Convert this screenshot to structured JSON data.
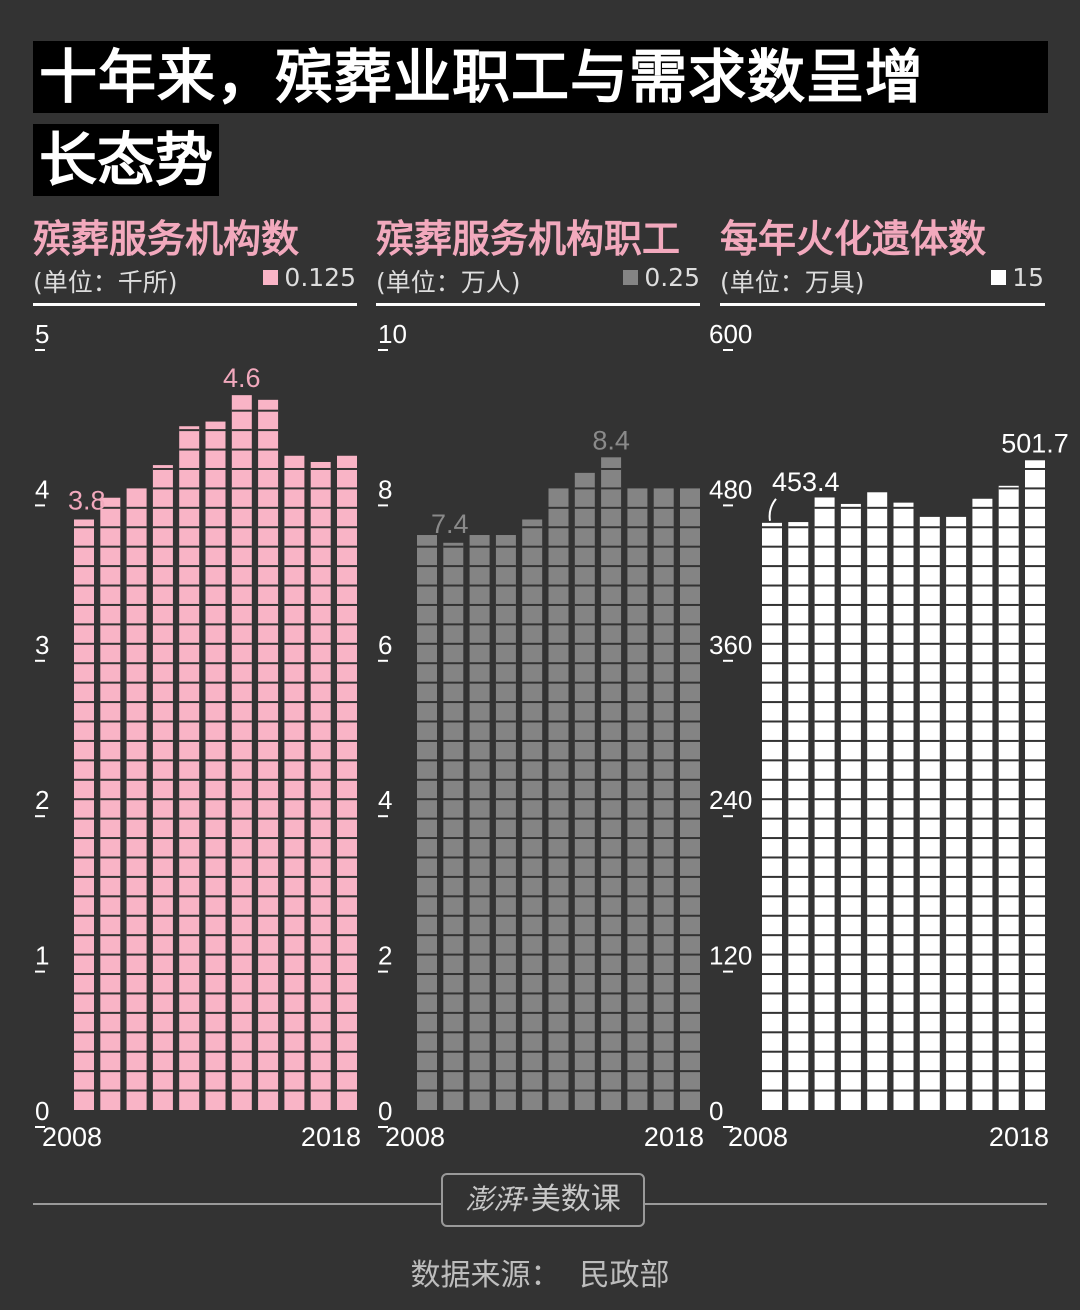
{
  "title": {
    "line1": "十年来，殡葬业职工与需求数呈增",
    "line2": "长态势"
  },
  "colors": {
    "background": "#333333",
    "pink": "#f9b4c6",
    "gray": "#848484",
    "white": "#ffffff"
  },
  "chart_data": [
    {
      "type": "bar",
      "title": "殡葬服务机构数",
      "unit": "(单位：千所)",
      "legend": "0.125",
      "segment": 0.125,
      "color": "#f9b4c6",
      "label_color": "#f2a9bd",
      "ylim": [
        0,
        5
      ],
      "yticks": [
        "0",
        "1",
        "2",
        "3",
        "4",
        "5"
      ],
      "xtick_labels": [
        "2008",
        "2018"
      ],
      "categories": [
        "2008",
        "2009",
        "2010",
        "2011",
        "2012",
        "2013",
        "2014",
        "2015",
        "2016",
        "2017",
        "2018"
      ],
      "values": [
        3.8,
        3.94,
        4.0,
        4.15,
        4.4,
        4.43,
        4.6,
        4.57,
        4.21,
        4.17,
        4.21
      ],
      "annotations": [
        {
          "index": 0,
          "text": "3.8"
        },
        {
          "index": 6,
          "text": "4.6"
        }
      ]
    },
    {
      "type": "bar",
      "title": "殡葬服务机构职工",
      "unit": "(单位：万人)",
      "legend": "0.25",
      "segment": 0.25,
      "color": "#848484",
      "label_color": "#8a8a8a",
      "ylim": [
        0,
        10
      ],
      "yticks": [
        "0",
        "2",
        "4",
        "6",
        "8",
        "10"
      ],
      "xtick_labels": [
        "2008",
        "2018"
      ],
      "categories": [
        "2008",
        "2009",
        "2010",
        "2011",
        "2012",
        "2013",
        "2014",
        "2015",
        "2016",
        "2017",
        "2018"
      ],
      "values": [
        7.4,
        7.3,
        7.4,
        7.4,
        7.6,
        8.0,
        8.2,
        8.4,
        8.0,
        8.0,
        8.0
      ],
      "annotations": [
        {
          "index": 0,
          "text": "7.4"
        },
        {
          "index": 7,
          "text": "8.4"
        }
      ]
    },
    {
      "type": "bar",
      "title": "每年火化遗体数",
      "unit": "(单位：万具)",
      "legend": "15",
      "segment": 15,
      "color": "#ffffff",
      "label_color": "#ffffff",
      "ylim": [
        0,
        600
      ],
      "yticks": [
        "0",
        "120",
        "240",
        "360",
        "480",
        "600"
      ],
      "xtick_labels": [
        "2008",
        "2018"
      ],
      "categories": [
        "2008",
        "2009",
        "2010",
        "2011",
        "2012",
        "2013",
        "2014",
        "2015",
        "2016",
        "2017",
        "2018"
      ],
      "values": [
        453.4,
        454,
        473,
        468,
        477,
        469,
        458,
        458,
        472,
        482,
        501.7
      ],
      "annotations": [
        {
          "index": 0,
          "text": "453.4"
        },
        {
          "index": 10,
          "text": "501.7"
        }
      ]
    }
  ],
  "footer": {
    "logo_brush": "澎湃",
    "logo_text": "·美数课",
    "source": "数据来源：  民政部"
  }
}
